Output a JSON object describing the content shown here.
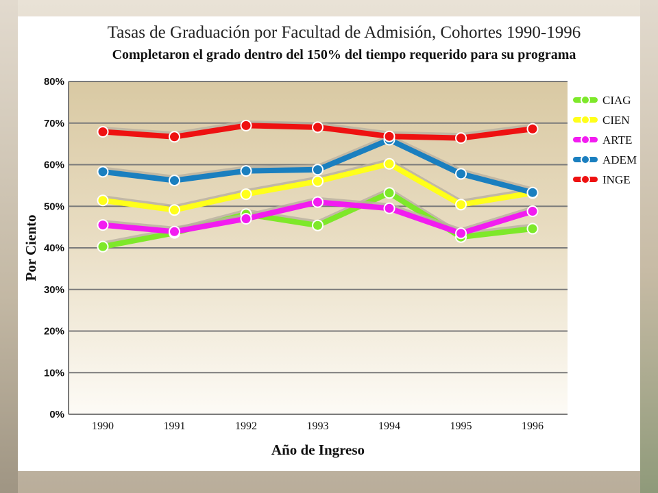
{
  "chart_data": {
    "type": "line",
    "title": "Tasas de Graduación por Facultad de Admisión, Cohortes 1990-1996",
    "subtitle": "Completaron el grado dentro del 150% del tiempo requerido para su programa",
    "xlabel": "Año de Ingreso",
    "ylabel": "Por Ciento",
    "categories": [
      "1990",
      "1991",
      "1992",
      "1993",
      "1994",
      "1995",
      "1996"
    ],
    "ylim": [
      0,
      80
    ],
    "yticks": [
      0,
      10,
      20,
      30,
      40,
      50,
      60,
      70,
      80
    ],
    "ytick_labels": [
      "0%",
      "10%",
      "20%",
      "30%",
      "40%",
      "50%",
      "60%",
      "70%",
      "80%"
    ],
    "grid": true,
    "legend_position": "right",
    "series": [
      {
        "name": "CIAG",
        "color": "#7ee82a",
        "values": [
          40.3,
          43.6,
          48.1,
          45.4,
          53.2,
          42.6,
          44.6
        ]
      },
      {
        "name": "CIEN",
        "color": "#ffff1a",
        "values": [
          51.4,
          49.1,
          52.9,
          56.0,
          60.2,
          50.4,
          53.2
        ]
      },
      {
        "name": "ARTE",
        "color": "#f21cf0",
        "values": [
          45.5,
          43.9,
          47.0,
          51.0,
          49.5,
          43.5,
          48.8
        ]
      },
      {
        "name": "ADEM",
        "color": "#1a7fbf",
        "values": [
          58.3,
          56.2,
          58.5,
          58.8,
          66.0,
          57.8,
          53.3
        ]
      },
      {
        "name": "INGE",
        "color": "#ee1111",
        "values": [
          67.9,
          66.7,
          69.4,
          69.0,
          66.8,
          66.4,
          68.6
        ]
      }
    ]
  }
}
